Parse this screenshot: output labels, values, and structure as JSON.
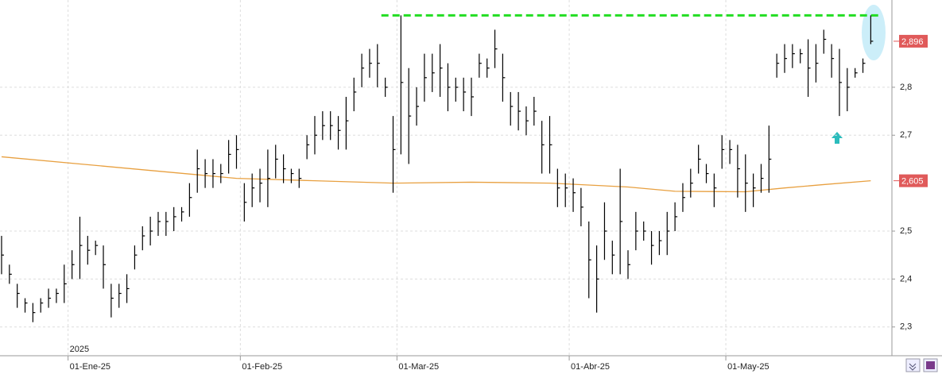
{
  "chart_data": {
    "type": "ohlc",
    "year_label": "2025",
    "categories": [
      null,
      null,
      null,
      null,
      null,
      null,
      null,
      null,
      null,
      "01-Ene-25",
      null,
      null,
      null,
      null,
      null,
      null,
      null,
      null,
      null,
      null,
      null,
      null,
      null,
      null,
      null,
      null,
      null,
      null,
      null,
      null,
      null,
      "01-Feb-25",
      null,
      null,
      null,
      null,
      null,
      null,
      null,
      null,
      null,
      null,
      null,
      null,
      null,
      null,
      null,
      null,
      null,
      null,
      null,
      "01-Mar-25",
      null,
      null,
      null,
      null,
      null,
      null,
      null,
      null,
      null,
      null,
      null,
      null,
      null,
      null,
      null,
      null,
      null,
      null,
      null,
      null,
      null,
      "01-Abr-25",
      null,
      null,
      null,
      null,
      null,
      null,
      null,
      null,
      null,
      null,
      null,
      null,
      null,
      null,
      null,
      null,
      null,
      null,
      null,
      "01-May-25",
      null,
      null,
      null,
      null,
      null,
      null,
      null,
      null,
      null,
      null,
      null,
      null,
      null,
      null,
      null,
      null,
      null,
      null
    ],
    "high": [
      2.49,
      2.43,
      2.39,
      2.36,
      2.35,
      2.36,
      2.38,
      2.38,
      2.43,
      2.46,
      2.53,
      2.49,
      2.48,
      2.47,
      2.39,
      2.39,
      2.41,
      2.47,
      2.51,
      2.53,
      2.54,
      2.54,
      2.55,
      2.55,
      2.6,
      2.67,
      2.65,
      2.65,
      2.64,
      2.69,
      2.7,
      2.6,
      2.62,
      2.63,
      2.67,
      2.68,
      2.66,
      2.63,
      2.63,
      2.7,
      2.74,
      2.75,
      2.75,
      2.74,
      2.78,
      2.82,
      2.87,
      2.88,
      2.89,
      2.82,
      2.74,
      2.95,
      2.84,
      2.8,
      2.87,
      2.87,
      2.89,
      2.85,
      2.82,
      2.82,
      2.82,
      2.87,
      2.86,
      2.92,
      2.87,
      2.79,
      2.79,
      2.76,
      2.78,
      2.73,
      2.74,
      2.63,
      2.62,
      2.61,
      2.59,
      2.52,
      2.47,
      2.56,
      2.48,
      2.63,
      2.46,
      2.54,
      2.52,
      2.5,
      2.5,
      2.54,
      2.56,
      2.6,
      2.63,
      2.68,
      2.64,
      2.62,
      2.7,
      2.69,
      2.68,
      2.66,
      2.62,
      2.64,
      2.72,
      2.87,
      2.89,
      2.89,
      2.88,
      2.9,
      2.89,
      2.92,
      2.89,
      2.88,
      2.84,
      2.84,
      2.86,
      2.95
    ],
    "low": [
      2.41,
      2.39,
      2.34,
      2.33,
      2.31,
      2.33,
      2.34,
      2.35,
      2.35,
      2.4,
      2.4,
      2.43,
      2.45,
      2.38,
      2.32,
      2.34,
      2.35,
      2.42,
      2.46,
      2.47,
      2.49,
      2.49,
      2.5,
      2.52,
      2.53,
      2.58,
      2.59,
      2.59,
      2.6,
      2.62,
      2.63,
      2.52,
      2.55,
      2.56,
      2.55,
      2.61,
      2.6,
      2.6,
      2.59,
      2.65,
      2.66,
      2.69,
      2.69,
      2.67,
      2.67,
      2.75,
      2.8,
      2.82,
      2.8,
      2.78,
      2.58,
      2.66,
      2.64,
      2.72,
      2.77,
      2.79,
      2.78,
      2.75,
      2.77,
      2.75,
      2.74,
      2.82,
      2.82,
      2.84,
      2.77,
      2.72,
      2.71,
      2.7,
      2.72,
      2.62,
      2.62,
      2.55,
      2.55,
      2.54,
      2.51,
      2.36,
      2.33,
      2.44,
      2.41,
      2.41,
      2.4,
      2.46,
      2.48,
      2.43,
      2.45,
      2.45,
      2.5,
      2.54,
      2.57,
      2.62,
      2.6,
      2.55,
      2.63,
      2.64,
      2.57,
      2.54,
      2.55,
      2.58,
      2.58,
      2.82,
      2.83,
      2.84,
      2.85,
      2.78,
      2.81,
      2.87,
      2.82,
      2.74,
      2.75,
      2.82,
      2.83,
      2.89
    ],
    "close": [
      2.45,
      2.41,
      2.37,
      2.35,
      2.33,
      2.35,
      2.36,
      2.37,
      2.39,
      2.43,
      2.47,
      2.46,
      2.47,
      2.43,
      2.36,
      2.37,
      2.38,
      2.45,
      2.49,
      2.5,
      2.52,
      2.52,
      2.53,
      2.54,
      2.57,
      2.63,
      2.62,
      2.62,
      2.62,
      2.66,
      2.67,
      2.56,
      2.59,
      2.6,
      2.61,
      2.65,
      2.63,
      2.62,
      2.61,
      2.68,
      2.7,
      2.72,
      2.72,
      2.71,
      2.73,
      2.79,
      2.84,
      2.85,
      2.85,
      2.8,
      2.67,
      2.81,
      2.74,
      2.76,
      2.82,
      2.83,
      2.84,
      2.8,
      2.8,
      2.79,
      2.78,
      2.85,
      2.84,
      2.88,
      2.82,
      2.76,
      2.75,
      2.73,
      2.75,
      2.68,
      2.68,
      2.59,
      2.59,
      2.58,
      2.55,
      2.44,
      2.4,
      2.5,
      2.45,
      2.52,
      2.43,
      2.5,
      2.5,
      2.47,
      2.48,
      2.5,
      2.53,
      2.57,
      2.6,
      2.65,
      2.62,
      2.59,
      2.67,
      2.67,
      2.63,
      2.6,
      2.59,
      2.61,
      2.65,
      2.85,
      2.86,
      2.87,
      2.87,
      2.84,
      2.85,
      2.9,
      2.86,
      2.81,
      2.8,
      2.83,
      2.85,
      2.896
    ],
    "color": "#000000",
    "moving_average": {
      "color": "#e8a040",
      "x": [
        0,
        10,
        20,
        30,
        40,
        50,
        60,
        70,
        80,
        86,
        95,
        100,
        105,
        111
      ],
      "values": [
        2.655,
        2.64,
        2.625,
        2.61,
        2.605,
        2.6,
        2.602,
        2.6,
        2.592,
        2.583,
        2.582,
        2.59,
        2.597,
        2.605
      ]
    },
    "resistance": {
      "value": 2.95,
      "x": [
        48.5,
        112
      ],
      "color": "#22dd22"
    },
    "price_labels": [
      {
        "value": 2.896,
        "label": "2,896",
        "color": "#e05a5a"
      },
      {
        "value": 2.605,
        "label": "2,605",
        "color": "#e05a5a"
      }
    ],
    "xlim": [
      -0.2,
      113.5
    ],
    "ylim": [
      2.24,
      2.982
    ],
    "yticks": [
      {
        "value": 2.3,
        "label": "2,3"
      },
      {
        "value": 2.4,
        "label": "2,4"
      },
      {
        "value": 2.5,
        "label": "2,5"
      },
      {
        "value": 2.7,
        "label": "2,7"
      },
      {
        "value": 2.8,
        "label": "2,8"
      }
    ],
    "grid": true
  }
}
